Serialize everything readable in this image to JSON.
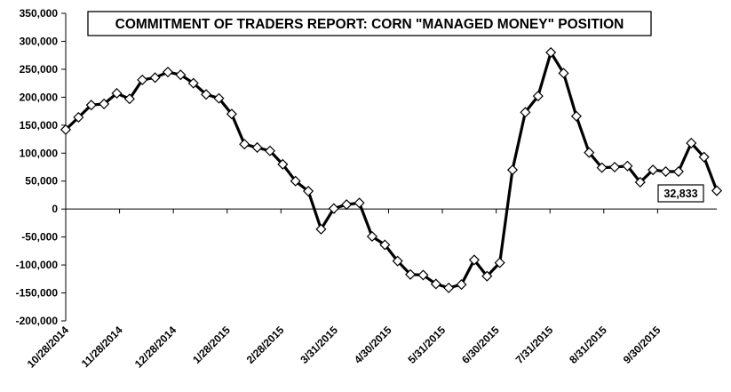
{
  "chart_data": {
    "type": "line",
    "title": "COMMITMENT OF TRADERS REPORT:  CORN \"MANAGED MONEY\" POSITION",
    "xlabel": "",
    "ylabel": "",
    "ylim": [
      -200000,
      350000
    ],
    "y_ticks": [
      350000,
      300000,
      250000,
      200000,
      150000,
      100000,
      50000,
      0,
      -50000,
      -100000,
      -150000,
      -200000
    ],
    "y_tick_labels": [
      "350,000",
      "300,000",
      "250,000",
      "200,000",
      "150,000",
      "100,000",
      "50,000",
      "0",
      "-50,000",
      "-100,000",
      "-150,000",
      "-200,000"
    ],
    "x_tick_labels": [
      "10/28/2014",
      "11/28/2014",
      "12/28/2014",
      "1/28/2015",
      "2/28/2015",
      "3/31/2015",
      "4/30/2015",
      "5/31/2015",
      "6/30/2015",
      "7/31/2015",
      "8/31/2015",
      "9/30/2015"
    ],
    "grid": false,
    "legend": "none",
    "annotation": {
      "text": "32,833",
      "point_index": 51
    },
    "line_color": "#000000",
    "marker": "diamond-white",
    "series": [
      {
        "values": [
          142000,
          164000,
          186000,
          188000,
          207000,
          197000,
          231000,
          235000,
          245000,
          240000,
          225000,
          205000,
          198000,
          170000,
          116000,
          110000,
          104000,
          80000,
          50000,
          32000,
          -36000,
          1000,
          8000,
          11000,
          -49000,
          -64000,
          -93000,
          -117000,
          -118000,
          -134000,
          -141000,
          -135000,
          -91000,
          -120000,
          -96000,
          70000,
          173000,
          202000,
          280000,
          243000,
          166000,
          101000,
          74000,
          75000,
          77000,
          48000,
          70000,
          67000,
          67000,
          118000,
          93000,
          32833
        ]
      }
    ]
  }
}
